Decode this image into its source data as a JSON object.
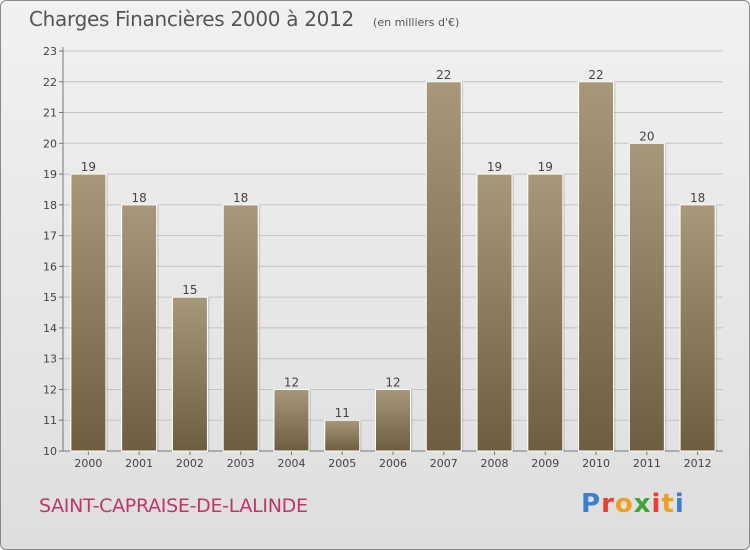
{
  "header": {
    "title": "Charges Financières 2000 à 2012",
    "subtitle": "(en milliers d'€)"
  },
  "footer": {
    "commune": "SAINT-CAPRAISE-DE-LALINDE",
    "logo_text": "Proxiti",
    "logo_colors": [
      "#3a7fd0",
      "#e8402c",
      "#f0a020",
      "#3fa535",
      "#e8402c",
      "#f0a020",
      "#3a7fd0"
    ]
  },
  "chart_data": {
    "type": "bar",
    "categories": [
      "2000",
      "2001",
      "2002",
      "2003",
      "2004",
      "2005",
      "2006",
      "2007",
      "2008",
      "2009",
      "2010",
      "2011",
      "2012"
    ],
    "values": [
      19,
      18,
      15,
      18,
      12,
      11,
      12,
      22,
      19,
      19,
      22,
      20,
      18
    ],
    "ylim": [
      10,
      23
    ],
    "yticks": [
      10,
      11,
      12,
      13,
      14,
      15,
      16,
      17,
      18,
      19,
      20,
      21,
      22,
      23
    ],
    "grid": true,
    "bar_color": "#8b7a5c",
    "title": "Charges Financières 2000 à 2012",
    "xlabel": "",
    "ylabel": ""
  }
}
